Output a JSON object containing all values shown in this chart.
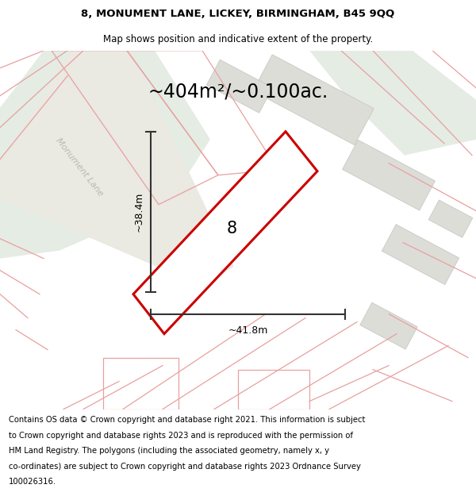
{
  "title_line1": "8, MONUMENT LANE, LICKEY, BIRMINGHAM, B45 9QQ",
  "title_line2": "Map shows position and indicative extent of the property.",
  "area_label": "~404m²/~0.100ac.",
  "property_number": "8",
  "dim_horizontal": "~41.8m",
  "dim_vertical": "~38.4m",
  "road_label": "Monument Lane",
  "footer_lines": [
    "Contains OS data © Crown copyright and database right 2021. This information is subject",
    "to Crown copyright and database rights 2023 and is reproduced with the permission of",
    "HM Land Registry. The polygons (including the associated geometry, namely x, y",
    "co-ordinates) are subject to Crown copyright and database rights 2023 Ordnance Survey",
    "100026316."
  ],
  "bg_color": "#f2ede8",
  "green_area_color": "#e4ece4",
  "property_fill": "#ffffff",
  "property_outline": "#cc0000",
  "dim_line_color": "#333333",
  "pink_line_color": "#e8a0a0",
  "title_fontsize": 9.5,
  "subtitle_fontsize": 8.5,
  "area_fontsize": 17,
  "dim_fontsize": 9,
  "number_fontsize": 15,
  "footer_fontsize": 7.2,
  "road_label_fontsize": 8
}
